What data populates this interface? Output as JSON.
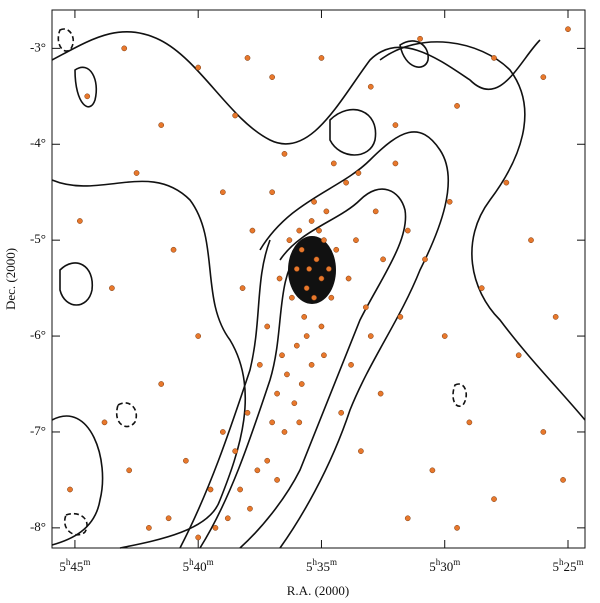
{
  "chart_data": {
    "type": "scatter",
    "x_label": "R.A. (2000)",
    "y_label": "Dec. (2000)",
    "color": "#e8782c",
    "xlim": [
      345.93,
      324.31
    ],
    "ylim": [
      -8.21,
      -2.6
    ],
    "xticks": [
      {
        "value": 345,
        "label": "5h45m"
      },
      {
        "value": 340,
        "label": "5h40m"
      },
      {
        "value": 335,
        "label": "5h35m"
      },
      {
        "value": 330,
        "label": "5h30m"
      },
      {
        "value": 325,
        "label": "5h25m"
      }
    ],
    "yticks": [
      {
        "value": -3,
        "label": "-3°"
      },
      {
        "value": -4,
        "label": "-4°"
      },
      {
        "value": -5,
        "label": "-5°"
      },
      {
        "value": -6,
        "label": "-6°"
      },
      {
        "value": -7,
        "label": "-7°"
      },
      {
        "value": -8,
        "label": "-8°"
      }
    ],
    "x": [
      335.2,
      335.5,
      335.0,
      335.8,
      334.9,
      335.3,
      335.6,
      336.0,
      334.7,
      335.1,
      335.4,
      335.9,
      334.6,
      335.7,
      336.2,
      334.4,
      335.0,
      336.3,
      334.8,
      335.3,
      335.6,
      336.0,
      334.9,
      335.4,
      336.4,
      335.8,
      336.1,
      336.6,
      336.8,
      335.9,
      336.5,
      337.0,
      337.2,
      336.8,
      337.6,
      337.9,
      338.3,
      338.8,
      339.3,
      340.0,
      333.9,
      333.6,
      333.2,
      334.0,
      334.5,
      333.5,
      332.8,
      332.5,
      333.0,
      333.8,
      334.2,
      333.4,
      332.6,
      331.8,
      331.5,
      332.0,
      336.7,
      337.2,
      337.5,
      338.0,
      338.5,
      339.0,
      339.5,
      340.5,
      341.2,
      342.0,
      337.0,
      336.5,
      337.8,
      338.2,
      344.5,
      343.0,
      341.5,
      340.0,
      338.5,
      337.0,
      335.0,
      333.0,
      331.0,
      329.5,
      328.0,
      326.0,
      325.0,
      327.5,
      326.5,
      325.5,
      327.0,
      328.5,
      329.0,
      330.5,
      328.0,
      326.0,
      325.2,
      331.5,
      329.5,
      330.0,
      330.8,
      329.8,
      344.8,
      343.5,
      342.5,
      341.0,
      340.0,
      341.5,
      343.8,
      345.2,
      342.8,
      339.0,
      338.0,
      332.0
    ],
    "values": [
      -5.2,
      -5.3,
      -5.4,
      -5.1,
      -5.0,
      -5.6,
      -5.5,
      -5.3,
      -5.3,
      -4.9,
      -4.8,
      -4.9,
      -5.6,
      -5.8,
      -5.6,
      -5.1,
      -5.9,
      -5.0,
      -4.7,
      -4.6,
      -6.0,
      -6.1,
      -6.2,
      -6.3,
      -6.4,
      -6.5,
      -6.7,
      -6.2,
      -6.6,
      -6.9,
      -7.0,
      -6.9,
      -7.3,
      -7.5,
      -7.4,
      -7.8,
      -7.6,
      -7.9,
      -8.0,
      -8.1,
      -5.4,
      -5.0,
      -5.7,
      -4.4,
      -4.2,
      -4.3,
      -4.7,
      -5.2,
      -6.0,
      -6.3,
      -6.8,
      -7.2,
      -6.6,
      -5.8,
      -4.9,
      -4.2,
      -5.4,
      -5.9,
      -6.3,
      -6.8,
      -7.2,
      -7.0,
      -7.6,
      -7.3,
      -7.9,
      -8.0,
      -4.5,
      -4.1,
      -4.9,
      -5.5,
      -3.5,
      -3.0,
      -3.8,
      -3.2,
      -3.7,
      -3.3,
      -3.1,
      -3.4,
      -2.9,
      -3.6,
      -3.1,
      -3.3,
      -2.8,
      -4.4,
      -5.0,
      -5.8,
      -6.2,
      -5.5,
      -6.9,
      -7.4,
      -7.7,
      -7.0,
      -7.5,
      -7.9,
      -8.0,
      -6.0,
      -5.2,
      -4.6,
      -4.8,
      -5.5,
      -4.3,
      -5.1,
      -6.0,
      -6.5,
      -6.9,
      -7.6,
      -7.4,
      -4.5,
      -3.1,
      -3.8
    ]
  }
}
